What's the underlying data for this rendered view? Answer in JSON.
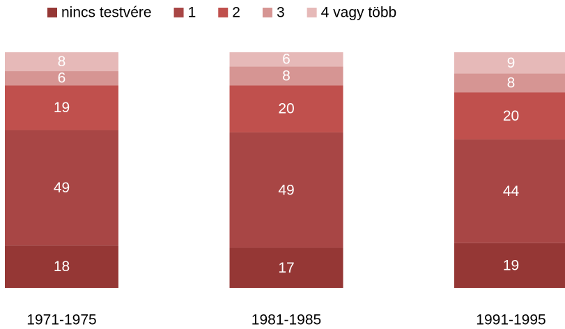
{
  "chart_data": {
    "type": "stacked_bar",
    "categories": [
      "1971-1975",
      "1981-1985",
      "1991-1995"
    ],
    "series": [
      {
        "name": "nincs testvére",
        "color": "#953735",
        "values": [
          18,
          17,
          19
        ]
      },
      {
        "name": "1",
        "color": "#a84645",
        "values": [
          49,
          49,
          44
        ]
      },
      {
        "name": "2",
        "color": "#c0504d",
        "values": [
          19,
          20,
          20
        ]
      },
      {
        "name": "3",
        "color": "#d69593",
        "values": [
          6,
          8,
          8
        ]
      },
      {
        "name": "4 vagy több",
        "color": "#e6b9b8",
        "values": [
          8,
          6,
          9
        ]
      }
    ],
    "legend": "top"
  }
}
